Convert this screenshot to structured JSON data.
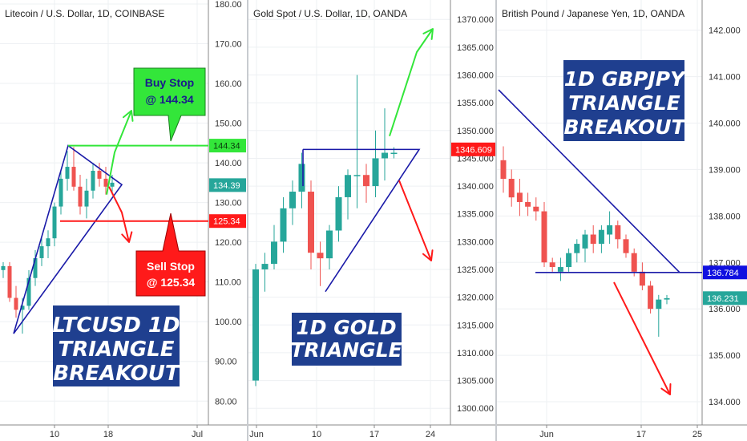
{
  "colors": {
    "up": "#26a69a",
    "down": "#ef5350",
    "trendline": "#1a1aa8",
    "buy": "#33e63a",
    "sell": "#ff1a1a",
    "box": "#1f3f8f",
    "grid": "#eef0f3",
    "axis": "#333333"
  },
  "chart_data": [
    {
      "type": "candlestick",
      "title": "Litecoin / U.S. Dollar, 1D, COINBASE",
      "ylim": [
        74,
        181
      ],
      "yticks": [
        180.0,
        170.0,
        160.0,
        150.0,
        140.0,
        130.0,
        120.0,
        110.0,
        100.0,
        90.0,
        80.0
      ],
      "x_tick_labels": [
        "10",
        "18",
        "Jul"
      ],
      "candles": [
        {
          "o": 113,
          "h": 115,
          "l": 111,
          "c": 114
        },
        {
          "o": 114,
          "h": 115,
          "l": 105,
          "c": 106
        },
        {
          "o": 106,
          "h": 109,
          "l": 101,
          "c": 103
        },
        {
          "o": 103,
          "h": 106,
          "l": 97,
          "c": 104
        },
        {
          "o": 104,
          "h": 113,
          "l": 103,
          "c": 111
        },
        {
          "o": 111,
          "h": 118,
          "l": 109,
          "c": 116
        },
        {
          "o": 116,
          "h": 121,
          "l": 114,
          "c": 119
        },
        {
          "o": 119,
          "h": 123,
          "l": 116,
          "c": 121
        },
        {
          "o": 121,
          "h": 130,
          "l": 119,
          "c": 129
        },
        {
          "o": 129,
          "h": 138,
          "l": 127,
          "c": 136
        },
        {
          "o": 136,
          "h": 143,
          "l": 133,
          "c": 139
        },
        {
          "o": 139,
          "h": 144,
          "l": 133,
          "c": 134
        },
        {
          "o": 134,
          "h": 137,
          "l": 127,
          "c": 129
        },
        {
          "o": 129,
          "h": 136,
          "l": 126,
          "c": 133
        },
        {
          "o": 133,
          "h": 140,
          "l": 131,
          "c": 138
        },
        {
          "o": 138,
          "h": 140,
          "l": 134,
          "c": 136
        },
        {
          "o": 136,
          "h": 139,
          "l": 132,
          "c": 134
        },
        {
          "o": 134,
          "h": 137,
          "l": 132,
          "c": 135
        }
      ],
      "price_tags": [
        {
          "label": "144.34",
          "value": 144.34,
          "kind": "buy"
        },
        {
          "label": "134.39",
          "value": 134.39,
          "kind": "last"
        },
        {
          "label": "125.34",
          "value": 125.34,
          "kind": "sell"
        }
      ],
      "levels": {
        "buy": 144.34,
        "sell": 125.34
      },
      "callouts": {
        "buy": [
          "Buy Stop",
          "@ 144.34"
        ],
        "sell": [
          "Sell Stop",
          "@ 125.34"
        ]
      },
      "box_title": [
        "LTCUSD 1D",
        "TRIANGLE",
        "BREAKOUT"
      ]
    },
    {
      "type": "candlestick",
      "title": "Gold Spot / U.S. Dollar, 1D, OANDA",
      "ylim": [
        1297,
        1373.5
      ],
      "yticks": [
        1370.0,
        1365.0,
        1360.0,
        1355.0,
        1350.0,
        1345.0,
        1340.0,
        1335.0,
        1330.0,
        1325.0,
        1320.0,
        1315.0,
        1310.0,
        1305.0,
        1300.0
      ],
      "x_tick_labels": [
        "Jun",
        "10",
        "17",
        "24"
      ],
      "candles": [
        {
          "o": 1305,
          "h": 1326,
          "l": 1304,
          "c": 1325
        },
        {
          "o": 1325,
          "h": 1328,
          "l": 1321,
          "c": 1326
        },
        {
          "o": 1326,
          "h": 1333,
          "l": 1325,
          "c": 1330
        },
        {
          "o": 1330,
          "h": 1338,
          "l": 1328,
          "c": 1336
        },
        {
          "o": 1336,
          "h": 1341,
          "l": 1333,
          "c": 1339
        },
        {
          "o": 1339,
          "h": 1346,
          "l": 1336,
          "c": 1344
        },
        {
          "o": 1339,
          "h": 1341,
          "l": 1325,
          "c": 1328
        },
        {
          "o": 1328,
          "h": 1330,
          "l": 1322,
          "c": 1327
        },
        {
          "o": 1327,
          "h": 1333,
          "l": 1325,
          "c": 1332
        },
        {
          "o": 1332,
          "h": 1340,
          "l": 1330,
          "c": 1338
        },
        {
          "o": 1338,
          "h": 1343,
          "l": 1334,
          "c": 1342
        },
        {
          "o": 1342,
          "h": 1360,
          "l": 1336,
          "c": 1342
        },
        {
          "o": 1342,
          "h": 1344,
          "l": 1337,
          "c": 1340
        },
        {
          "o": 1340,
          "h": 1350,
          "l": 1338,
          "c": 1345
        },
        {
          "o": 1345,
          "h": 1354,
          "l": 1341,
          "c": 1346
        },
        {
          "o": 1346,
          "h": 1347,
          "l": 1345,
          "c": 1346
        }
      ],
      "price_tags": [
        {
          "label": "1346.609",
          "value": 1346.609,
          "kind": "sell"
        }
      ],
      "box_title": [
        "1D GOLD",
        "TRIANGLE"
      ]
    },
    {
      "type": "candlestick",
      "title": "British Pound / Japanese Yen, 1D, OANDA",
      "ylim": [
        133.5,
        142.65
      ],
      "yticks": [
        142.0,
        141.0,
        140.0,
        139.0,
        138.0,
        137.0,
        136.0,
        135.0,
        134.0
      ],
      "x_tick_labels": [
        "Jun",
        "17",
        "25"
      ],
      "candles": [
        {
          "o": 139.2,
          "h": 139.5,
          "l": 138.5,
          "c": 138.8
        },
        {
          "o": 138.8,
          "h": 139.0,
          "l": 138.2,
          "c": 138.4
        },
        {
          "o": 138.5,
          "h": 138.8,
          "l": 138.0,
          "c": 138.3
        },
        {
          "o": 138.3,
          "h": 138.5,
          "l": 138.0,
          "c": 138.2
        },
        {
          "o": 138.2,
          "h": 138.4,
          "l": 137.9,
          "c": 138.1
        },
        {
          "o": 138.1,
          "h": 138.3,
          "l": 136.9,
          "c": 137.0
        },
        {
          "o": 137.0,
          "h": 137.1,
          "l": 136.8,
          "c": 136.9
        },
        {
          "o": 136.8,
          "h": 137.1,
          "l": 136.6,
          "c": 136.9
        },
        {
          "o": 136.9,
          "h": 137.3,
          "l": 136.8,
          "c": 137.2
        },
        {
          "o": 137.2,
          "h": 137.5,
          "l": 137.0,
          "c": 137.4
        },
        {
          "o": 137.3,
          "h": 137.7,
          "l": 137.0,
          "c": 137.6
        },
        {
          "o": 137.6,
          "h": 137.8,
          "l": 137.2,
          "c": 137.4
        },
        {
          "o": 137.4,
          "h": 137.8,
          "l": 137.2,
          "c": 137.7
        },
        {
          "o": 137.6,
          "h": 138.1,
          "l": 137.4,
          "c": 137.8
        },
        {
          "o": 137.8,
          "h": 137.9,
          "l": 137.3,
          "c": 137.5
        },
        {
          "o": 137.5,
          "h": 137.6,
          "l": 137.1,
          "c": 137.2
        },
        {
          "o": 137.2,
          "h": 137.3,
          "l": 136.7,
          "c": 136.8
        },
        {
          "o": 136.8,
          "h": 137.0,
          "l": 136.4,
          "c": 136.5
        },
        {
          "o": 136.5,
          "h": 136.6,
          "l": 135.9,
          "c": 136.0
        },
        {
          "o": 136.0,
          "h": 136.3,
          "l": 135.4,
          "c": 136.2
        },
        {
          "o": 136.2,
          "h": 136.3,
          "l": 136.1,
          "c": 136.23
        }
      ],
      "price_tags": [
        {
          "label": "136.784",
          "value": 136.784,
          "kind": "level"
        },
        {
          "label": "136.231",
          "value": 136.231,
          "kind": "last"
        }
      ],
      "box_title": [
        "1D GBPJPY",
        "TRIANGLE",
        "BREAKOUT"
      ]
    }
  ]
}
